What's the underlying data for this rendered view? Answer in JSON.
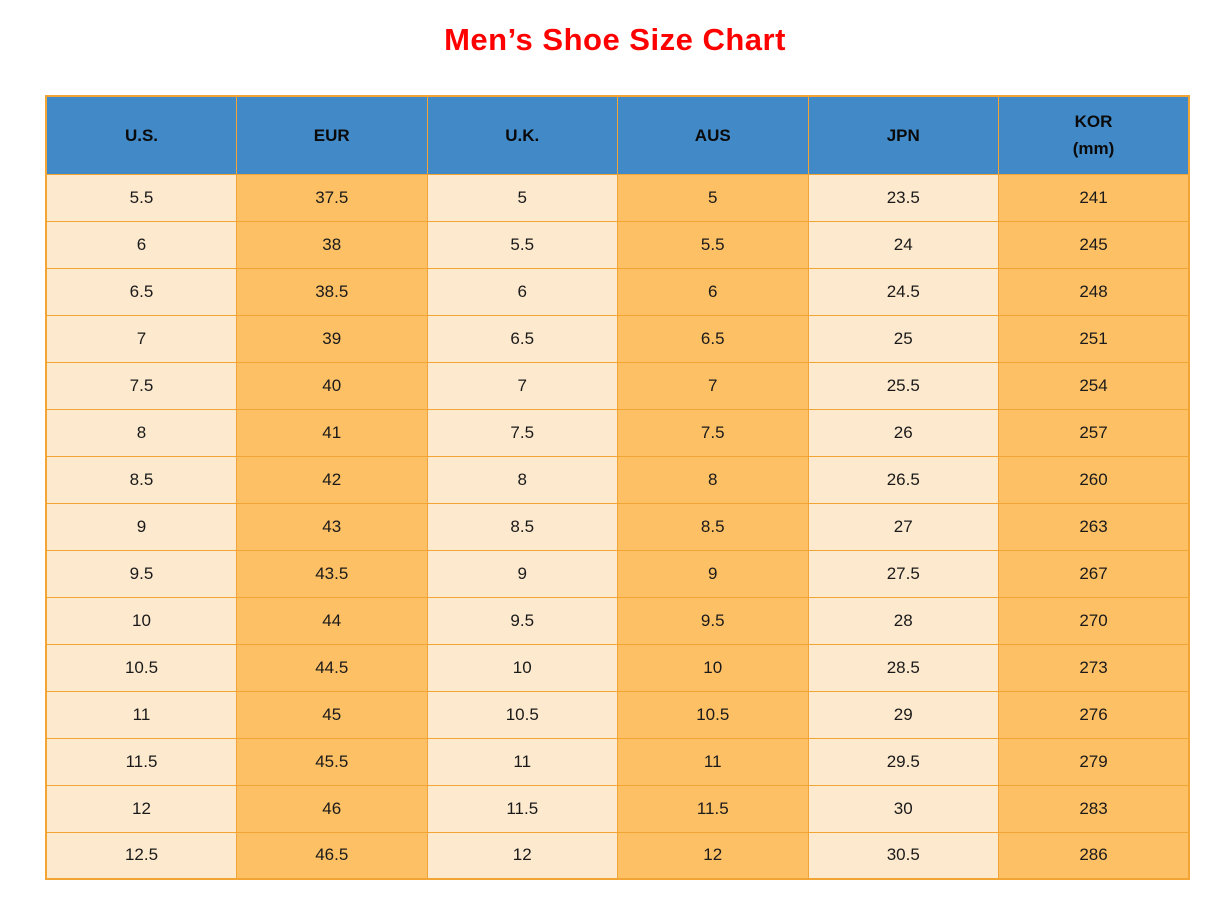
{
  "title": "Men’s Shoe Size Chart",
  "colors": {
    "title_red": "#FF0000",
    "header_blue": "#4189C7",
    "header_text": "#0A0A0A",
    "cell_cream": "#FDE9CE",
    "cell_orange": "#FDC065",
    "grid_orange": "#F2A434",
    "cell_text": "#1A1A1A"
  },
  "chart_data": {
    "type": "table",
    "title": "Men’s Shoe Size Chart",
    "columns": [
      {
        "label": "U.S.",
        "sublabel": ""
      },
      {
        "label": "EUR",
        "sublabel": ""
      },
      {
        "label": "U.K.",
        "sublabel": ""
      },
      {
        "label": "AUS",
        "sublabel": ""
      },
      {
        "label": "JPN",
        "sublabel": ""
      },
      {
        "label": "KOR",
        "sublabel": "(mm)"
      }
    ],
    "rows": [
      [
        "5.5",
        "37.5",
        "5",
        "5",
        "23.5",
        "241"
      ],
      [
        "6",
        "38",
        "5.5",
        "5.5",
        "24",
        "245"
      ],
      [
        "6.5",
        "38.5",
        "6",
        "6",
        "24.5",
        "248"
      ],
      [
        "7",
        "39",
        "6.5",
        "6.5",
        "25",
        "251"
      ],
      [
        "7.5",
        "40",
        "7",
        "7",
        "25.5",
        "254"
      ],
      [
        "8",
        "41",
        "7.5",
        "7.5",
        "26",
        "257"
      ],
      [
        "8.5",
        "42",
        "8",
        "8",
        "26.5",
        "260"
      ],
      [
        "9",
        "43",
        "8.5",
        "8.5",
        "27",
        "263"
      ],
      [
        "9.5",
        "43.5",
        "9",
        "9",
        "27.5",
        "267"
      ],
      [
        "10",
        "44",
        "9.5",
        "9.5",
        "28",
        "270"
      ],
      [
        "10.5",
        "44.5",
        "10",
        "10",
        "28.5",
        "273"
      ],
      [
        "11",
        "45",
        "10.5",
        "10.5",
        "29",
        "276"
      ],
      [
        "11.5",
        "45.5",
        "11",
        "11",
        "29.5",
        "279"
      ],
      [
        "12",
        "46",
        "11.5",
        "11.5",
        "30",
        "283"
      ],
      [
        "12.5",
        "46.5",
        "12",
        "12",
        "30.5",
        "286"
      ]
    ]
  }
}
